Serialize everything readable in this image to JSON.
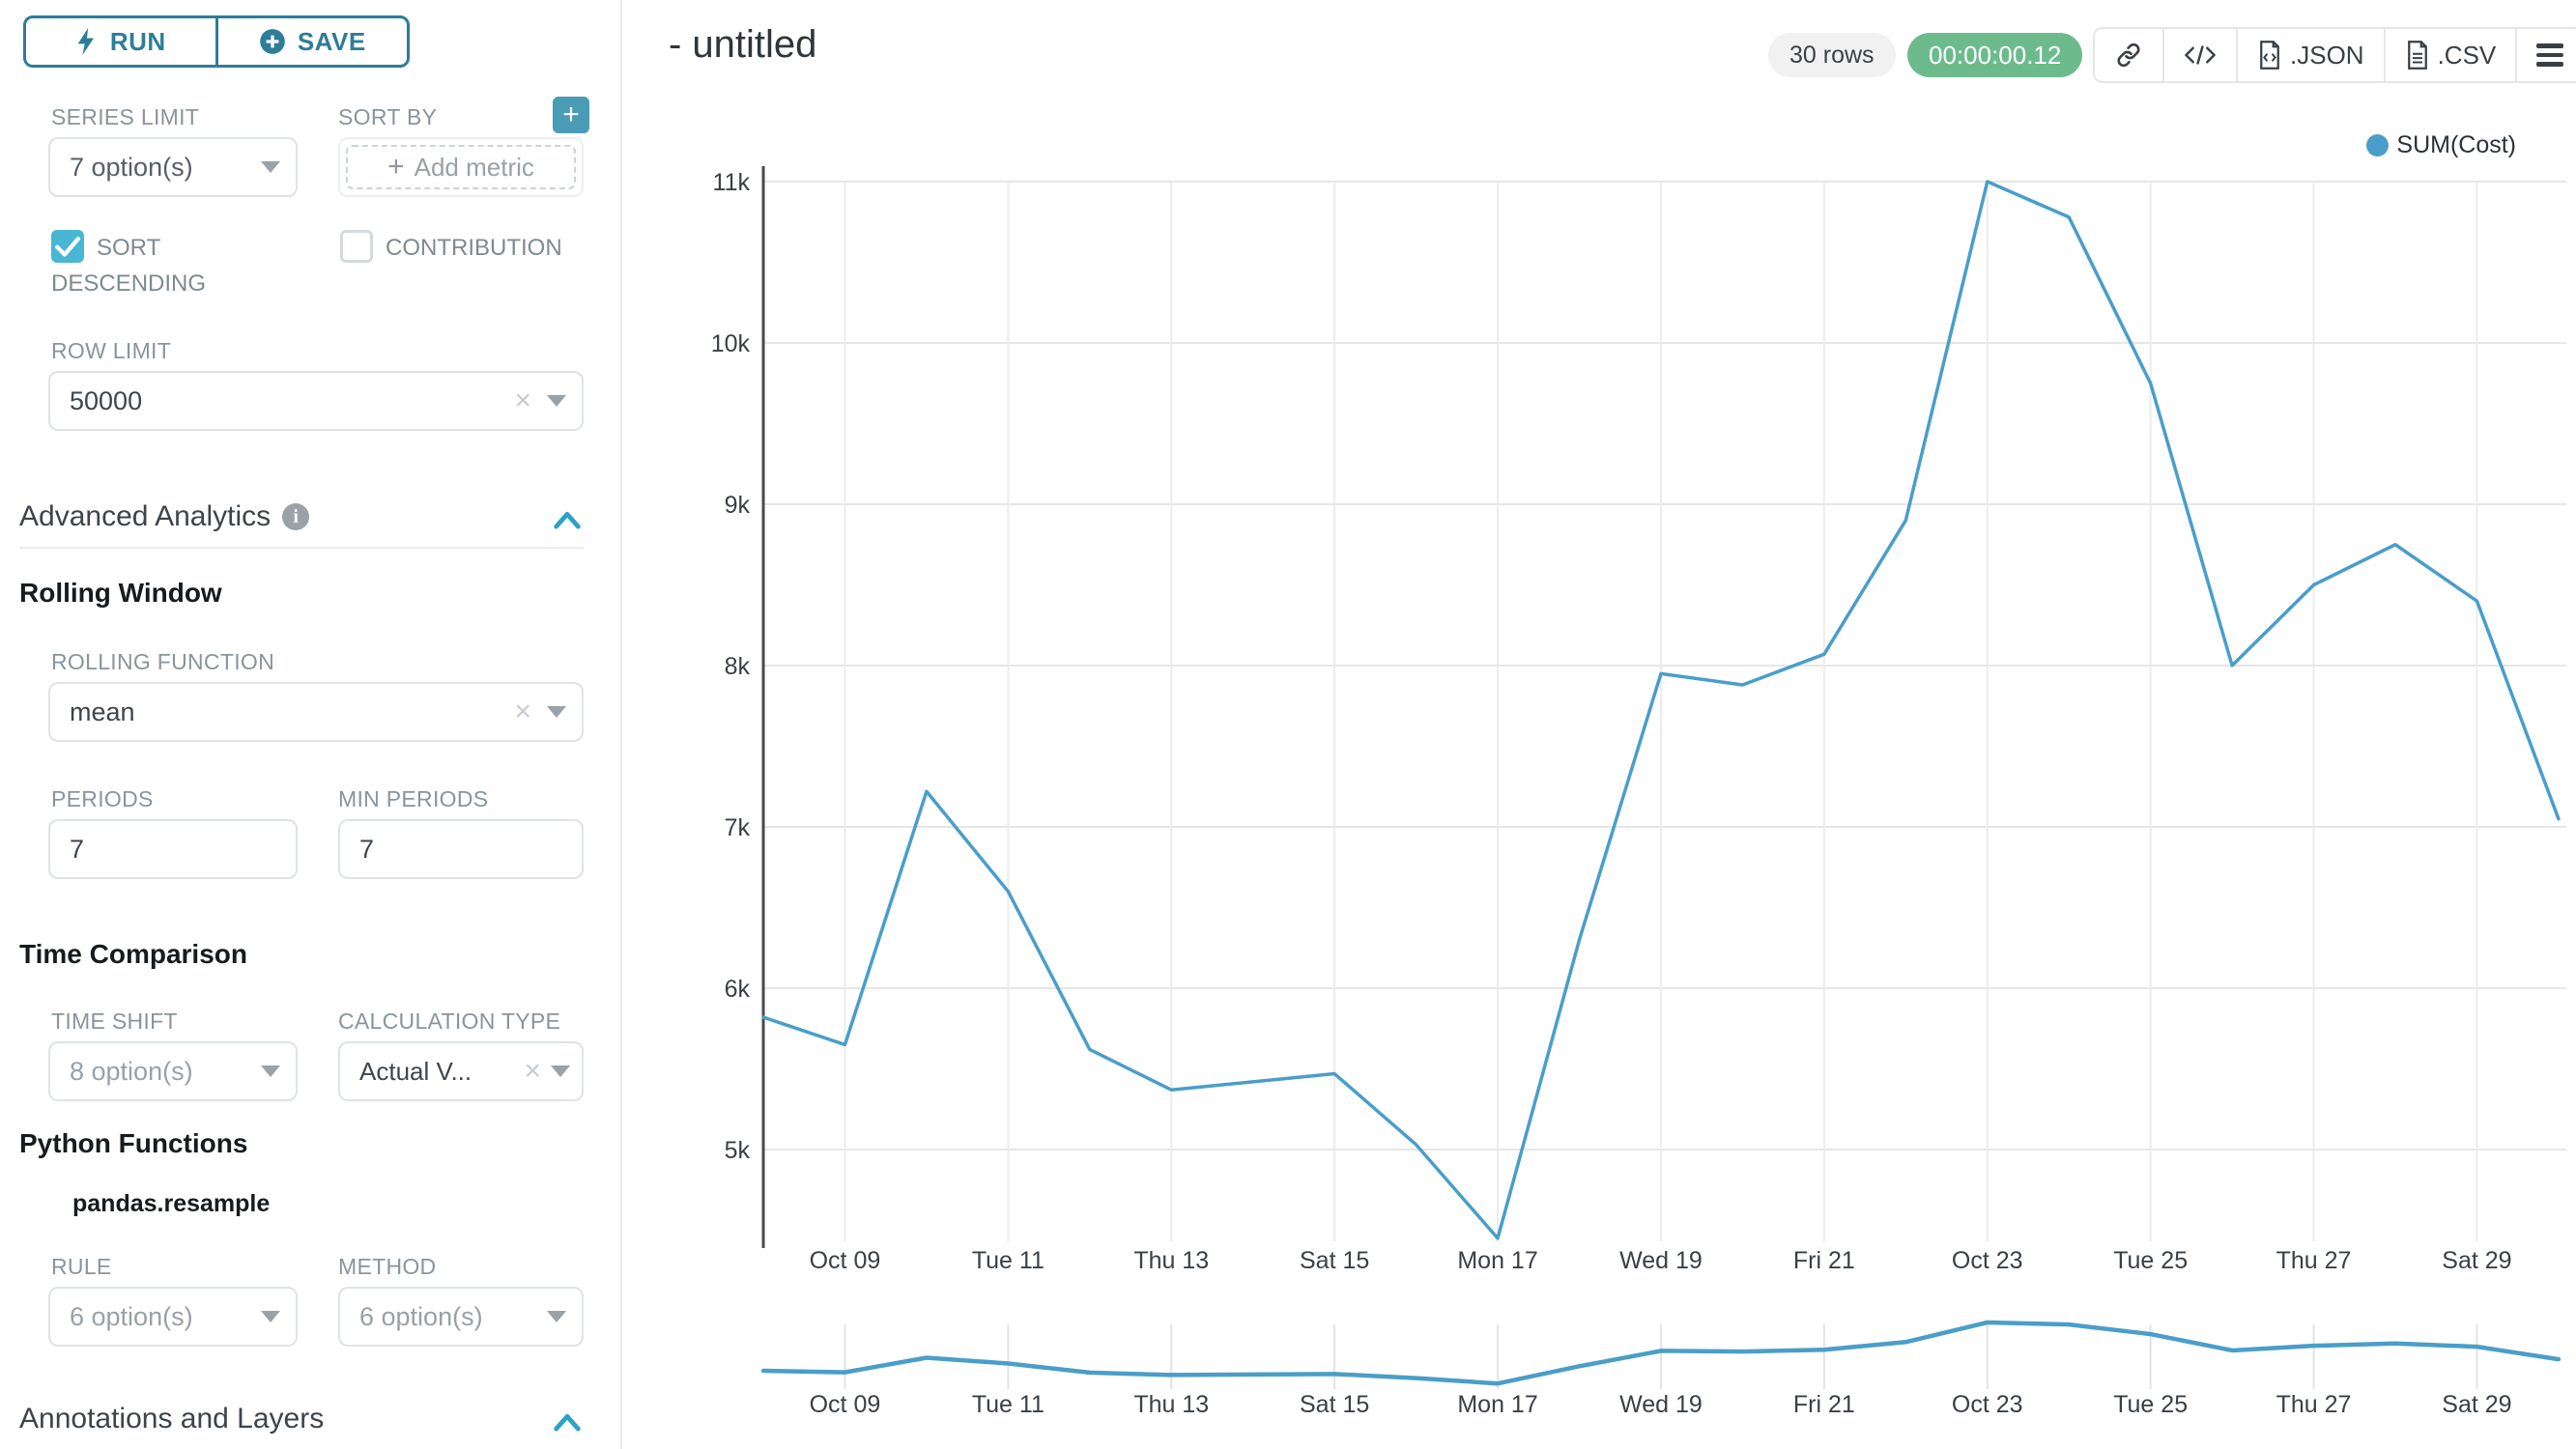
{
  "colors": {
    "teal_button": "#2e7d98",
    "accent_checkbox": "#49b6d4",
    "accent_chevron": "#2aa2ca",
    "accent_plus": "#4a9cb5",
    "green": "#6dbb8d",
    "border": "#dfe3e6",
    "divider": "#e9ebed",
    "label_gray": "#8a949b",
    "badge_gray_bg": "#f1f1f2"
  },
  "icons": {
    "run": "lightning-bolt",
    "save": "plus-circle",
    "add_saved_metric": "plus-square",
    "add_metric_field": "plus",
    "advanced_analytics_info": "info-circle",
    "section_collapse": "chevron-up",
    "select_clear": "x",
    "select_caret": "caret-down",
    "copy_link": "link",
    "embed_code": "code-brackets",
    "download_json": "file-json",
    "download_csv": "file-csv",
    "more_menu": "hamburger-menu",
    "legend_marker": "circle-dot"
  },
  "sidebar": {
    "run_label": "RUN",
    "save_label": "SAVE",
    "series_limit": {
      "label": "SERIES LIMIT",
      "value": "7 option(s)"
    },
    "sort_by": {
      "label": "SORT BY",
      "placeholder": "Add metric",
      "plus": "+"
    },
    "sort_descending_label": "SORT DESCENDING",
    "contribution_label": "CONTRIBUTION",
    "row_limit": {
      "label": "ROW LIMIT",
      "value": "50000"
    },
    "advanced_analytics_title": "Advanced Analytics",
    "rolling_window": {
      "title": "Rolling Window",
      "rolling_function": {
        "label": "ROLLING FUNCTION",
        "value": "mean"
      },
      "periods": {
        "label": "PERIODS",
        "value": "7"
      },
      "min_periods": {
        "label": "MIN PERIODS",
        "value": "7"
      }
    },
    "time_comparison": {
      "title": "Time Comparison",
      "time_shift": {
        "label": "TIME SHIFT",
        "value": "8 option(s)"
      },
      "calculation_type": {
        "label": "CALCULATION TYPE",
        "value": "Actual V..."
      }
    },
    "python_functions": {
      "title": "Python Functions",
      "subtitle": "pandas.resample",
      "rule": {
        "label": "RULE",
        "value": "6 option(s)"
      },
      "method": {
        "label": "METHOD",
        "value": "6 option(s)"
      }
    },
    "annotations_title": "Annotations and Layers"
  },
  "header": {
    "title": "- untitled",
    "rows_badge": "30 rows",
    "timer_badge": "00:00:00.12",
    "json_label": ".JSON",
    "csv_label": ".CSV"
  },
  "chart_data": {
    "type": "line",
    "title": "",
    "grid": true,
    "legend_position": "top-right",
    "x": [
      "Oct 08",
      "Oct 09",
      "Oct 10",
      "Oct 11",
      "Oct 12",
      "Oct 13",
      "Oct 14",
      "Oct 15",
      "Oct 16",
      "Oct 17",
      "Oct 18",
      "Oct 19",
      "Oct 20",
      "Oct 21",
      "Oct 22",
      "Oct 23",
      "Oct 24",
      "Oct 25",
      "Oct 26",
      "Oct 27",
      "Oct 28",
      "Oct 29",
      "Oct 30"
    ],
    "series": [
      {
        "name": "SUM(Cost)",
        "color": "#4a9ec9",
        "values": [
          5820,
          5650,
          7220,
          6600,
          5620,
          5370,
          5420,
          5470,
          5030,
          4450,
          6300,
          7950,
          7880,
          8070,
          8900,
          11000,
          10780,
          9750,
          8000,
          8500,
          8750,
          8400,
          7050
        ]
      }
    ],
    "x_axis": {
      "tick_indices": [
        1,
        3,
        5,
        7,
        9,
        11,
        13,
        15,
        17,
        19,
        21
      ],
      "tick_labels": [
        "Oct 09",
        "Tue 11",
        "Thu 13",
        "Sat 15",
        "Mon 17",
        "Wed 19",
        "Fri 21",
        "Oct 23",
        "Tue 25",
        "Thu 27",
        "Sat 29"
      ]
    },
    "y_axis": {
      "ticks": [
        {
          "label": "11k",
          "value": 11000
        },
        {
          "label": "10k",
          "value": 10000
        },
        {
          "label": "9k",
          "value": 9000
        },
        {
          "label": "8k",
          "value": 8000
        },
        {
          "label": "7k",
          "value": 7000
        },
        {
          "label": "6k",
          "value": 6000
        },
        {
          "label": "5k",
          "value": 5000
        }
      ],
      "max_value": 11000,
      "ylim": [
        4300,
        11200
      ]
    },
    "has_preview_strip": true
  }
}
